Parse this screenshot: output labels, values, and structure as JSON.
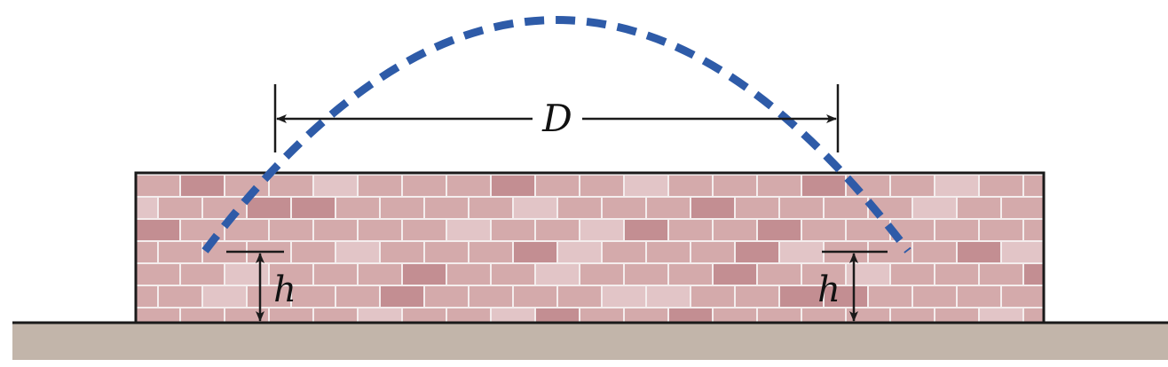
{
  "labels": {
    "distance": "D",
    "height_left": "h",
    "height_right": "h"
  },
  "colors": {
    "trajectory": "#2E5BA8",
    "wall_mortar": "#F4EDED",
    "brick_base": "#D4AAAB",
    "brick_dark": "#C38E92",
    "brick_light": "#E2C5C7",
    "ground": "#C2B5AA",
    "ink": "#1A1A1A"
  }
}
